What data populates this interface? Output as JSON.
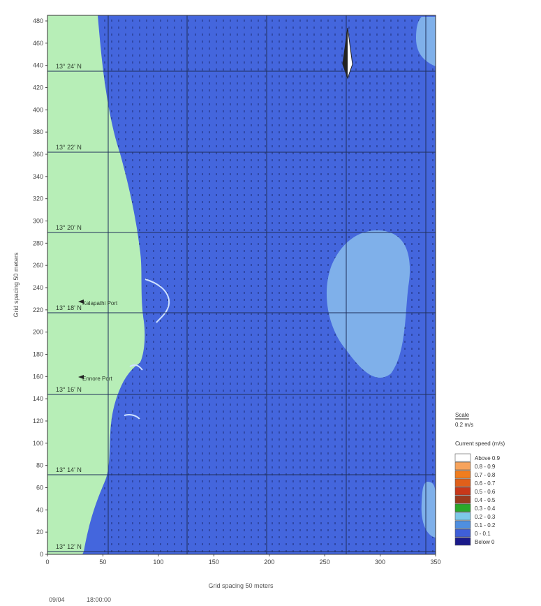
{
  "map": {
    "y_axis_title": "Grid spacing 50 meters",
    "x_axis_title": "Grid spacing 50 meters",
    "y_ticks": [
      "0",
      "20",
      "40",
      "60",
      "80",
      "100",
      "120",
      "140",
      "160",
      "180",
      "200",
      "220",
      "240",
      "260",
      "280",
      "300",
      "320",
      "340",
      "360",
      "380",
      "400",
      "420",
      "440",
      "460",
      "480"
    ],
    "x_ticks": [
      "0",
      "50",
      "100",
      "150",
      "200",
      "250",
      "300",
      "350"
    ],
    "latitudes": [
      "13° 12' N",
      "13° 14' N",
      "13° 16' N",
      "13° 18' N",
      "13° 20' N",
      "13° 22' N",
      "13° 24' N"
    ],
    "ports": [
      "Kalapathi Port",
      "Ennore Port"
    ]
  },
  "legend": {
    "scale_title": "Scale",
    "scale_value": "0.2 m/s",
    "title": "Current speed (m/s)",
    "classes": [
      {
        "label": "Above 0.9",
        "color": "#ffffff"
      },
      {
        "label": "0.8 - 0.9",
        "color": "#f7a35c"
      },
      {
        "label": "0.7 - 0.8",
        "color": "#f07d1e"
      },
      {
        "label": "0.6 - 0.7",
        "color": "#e0601a"
      },
      {
        "label": "0.5 - 0.6",
        "color": "#c8381a"
      },
      {
        "label": "0.4 - 0.5",
        "color": "#9b3a1e"
      },
      {
        "label": "0.3 - 0.4",
        "color": "#2aa82a"
      },
      {
        "label": "0.2 - 0.3",
        "color": "#7dc8e8"
      },
      {
        "label": "0.1 - 0.2",
        "color": "#4f8fe0"
      },
      {
        "label": "0 - 0.1",
        "color": "#3f5fd8"
      },
      {
        "label": "Below 0",
        "color": "#1a1a8a"
      }
    ]
  },
  "footer": {
    "date": "09/04",
    "time": "18:00:00"
  },
  "colors": {
    "land": "#b7eeb7",
    "sea": "#4466dd",
    "eddy": "#7fb0ea",
    "grid": "#1f2f5a"
  }
}
